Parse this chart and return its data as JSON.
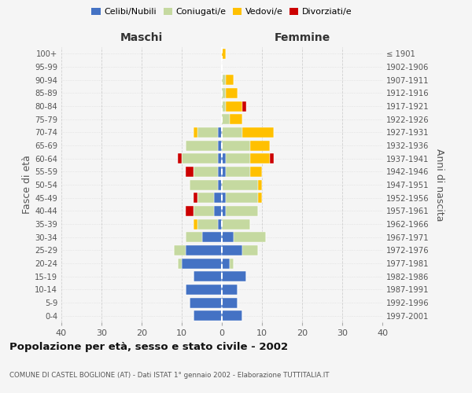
{
  "age_groups": [
    "0-4",
    "5-9",
    "10-14",
    "15-19",
    "20-24",
    "25-29",
    "30-34",
    "35-39",
    "40-44",
    "45-49",
    "50-54",
    "55-59",
    "60-64",
    "65-69",
    "70-74",
    "75-79",
    "80-84",
    "85-89",
    "90-94",
    "95-99",
    "100+"
  ],
  "birth_years": [
    "1997-2001",
    "1992-1996",
    "1987-1991",
    "1982-1986",
    "1977-1981",
    "1972-1976",
    "1967-1971",
    "1962-1966",
    "1957-1961",
    "1952-1956",
    "1947-1951",
    "1942-1946",
    "1937-1941",
    "1932-1936",
    "1927-1931",
    "1922-1926",
    "1917-1921",
    "1912-1916",
    "1907-1911",
    "1902-1906",
    "≤ 1901"
  ],
  "male": {
    "celibi": [
      7,
      8,
      9,
      7,
      10,
      9,
      5,
      1,
      2,
      2,
      1,
      1,
      1,
      1,
      1,
      0,
      0,
      0,
      0,
      0,
      0
    ],
    "coniugati": [
      0,
      0,
      0,
      0,
      1,
      3,
      4,
      5,
      5,
      4,
      7,
      6,
      9,
      8,
      5,
      0,
      0,
      0,
      0,
      0,
      0
    ],
    "vedovi": [
      0,
      0,
      0,
      0,
      0,
      0,
      0,
      1,
      0,
      0,
      0,
      0,
      0,
      0,
      1,
      0,
      0,
      0,
      0,
      0,
      0
    ],
    "divorziati": [
      0,
      0,
      0,
      0,
      0,
      0,
      0,
      0,
      2,
      1,
      0,
      2,
      1,
      0,
      0,
      0,
      0,
      0,
      0,
      0,
      0
    ]
  },
  "female": {
    "nubili": [
      5,
      4,
      4,
      6,
      2,
      5,
      3,
      0,
      1,
      1,
      0,
      1,
      1,
      0,
      0,
      0,
      0,
      0,
      0,
      0,
      0
    ],
    "coniugate": [
      0,
      0,
      0,
      0,
      1,
      4,
      8,
      7,
      8,
      8,
      9,
      6,
      6,
      7,
      5,
      2,
      1,
      1,
      1,
      0,
      0
    ],
    "vedove": [
      0,
      0,
      0,
      0,
      0,
      0,
      0,
      0,
      0,
      1,
      1,
      3,
      5,
      5,
      8,
      3,
      4,
      3,
      2,
      0,
      1
    ],
    "divorziate": [
      0,
      0,
      0,
      0,
      0,
      0,
      0,
      0,
      0,
      0,
      0,
      0,
      1,
      0,
      0,
      0,
      1,
      0,
      0,
      0,
      0
    ]
  },
  "colors": {
    "celibi": "#4472c4",
    "coniugati": "#c5d9a0",
    "vedovi": "#ffc000",
    "divorziati": "#cc0000"
  },
  "title": "Popolazione per età, sesso e stato civile - 2002",
  "subtitle": "COMUNE DI CASTEL BOGLIONE (AT) - Dati ISTAT 1° gennaio 2002 - Elaborazione TUTTITALIA.IT",
  "xlabel_left": "Maschi",
  "xlabel_right": "Femmine",
  "ylabel": "Fasce di età",
  "ylabel_right": "Anni di nascita",
  "xlim": 40,
  "bg_color": "#f5f5f5",
  "grid_color": "#cccccc"
}
